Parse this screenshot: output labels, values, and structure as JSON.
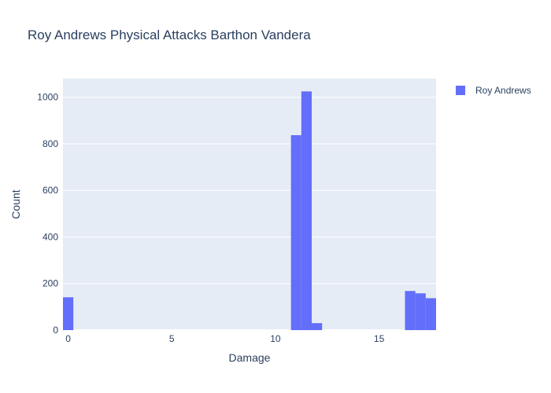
{
  "chart_data": {
    "type": "bar",
    "title": "Roy Andrews Physical Attacks Barthon Vandera",
    "xlabel": "Damage",
    "ylabel": "Count",
    "xlim": [
      -0.25,
      17.75
    ],
    "ylim": [
      0,
      1080
    ],
    "x_ticks": [
      0,
      5,
      10,
      15
    ],
    "y_ticks": [
      0,
      200,
      400,
      600,
      800,
      1000
    ],
    "bin_width": 0.5,
    "grid": true,
    "legend_position": "top-right",
    "series": [
      {
        "name": "Roy Andrews",
        "color": "#636efa",
        "bins": [
          {
            "start": -0.25,
            "end": 0.25,
            "count": 141
          },
          {
            "start": 10.75,
            "end": 11.25,
            "count": 837
          },
          {
            "start": 11.25,
            "end": 11.75,
            "count": 1025
          },
          {
            "start": 11.75,
            "end": 12.25,
            "count": 30
          },
          {
            "start": 16.25,
            "end": 16.75,
            "count": 168
          },
          {
            "start": 16.75,
            "end": 17.25,
            "count": 158
          },
          {
            "start": 17.25,
            "end": 17.75,
            "count": 137
          }
        ]
      }
    ]
  }
}
